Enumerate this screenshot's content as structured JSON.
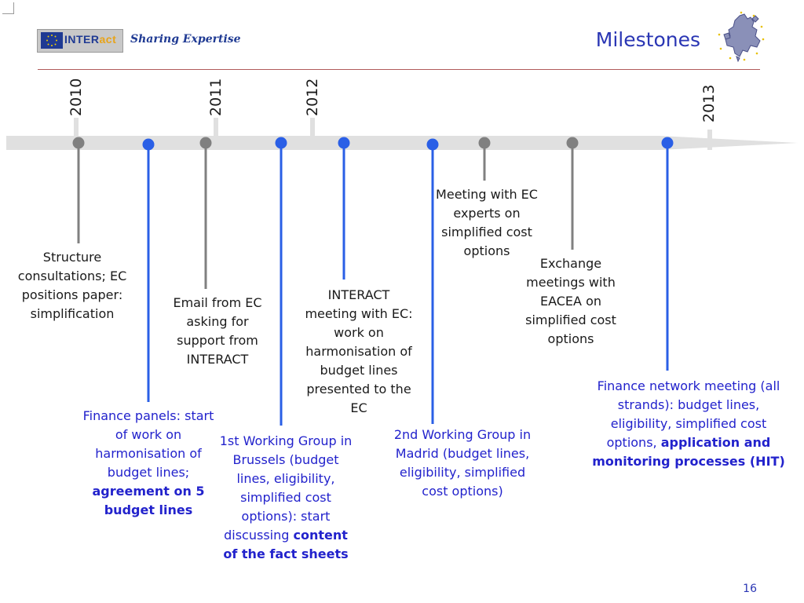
{
  "header": {
    "logo_text_a": "INTER",
    "logo_text_b": "act",
    "tagline": "Sharing Expertise",
    "title": "Milestones"
  },
  "colors": {
    "accent_blue": "#2222cc",
    "gray_marker": "#808080",
    "blue_marker": "#2a5fe6",
    "timeline_band": "#e0e0e0",
    "rule": "#b05a5a"
  },
  "timeline": {
    "years": [
      "2010",
      "2011",
      "2012",
      "2013"
    ],
    "events": [
      {
        "year": "2010",
        "text": "Structure consultations; EC positions paper: simplification"
      },
      {
        "year": "2010",
        "text": "Finance panels: start of work on harmonisation of budget lines; ",
        "bold": "agreement on 5 budget lines"
      },
      {
        "year": "2011",
        "text": "Email from EC asking for support from INTERACT"
      },
      {
        "year": "2011",
        "text": "1st Working Group in Brussels (budget lines, eligibility, simplified cost options): start discussing ",
        "bold": "content of the fact sheets"
      },
      {
        "year": "2011",
        "text": "INTERACT meeting with EC: work on harmonisation of budget lines presented to the EC"
      },
      {
        "year": "2012",
        "text": "2nd Working Group in Madrid (budget lines, eligibility, simplified cost options)"
      },
      {
        "year": "2012",
        "text": "Meeting with EC experts on simplified cost options"
      },
      {
        "year": "2012",
        "text": "Exchange meetings with EACEA on simplified cost options"
      },
      {
        "year": "2012",
        "text": "Finance network meeting (all strands): budget lines, eligibility, simplified cost options, ",
        "bold": "application and monitoring processes (HIT)"
      }
    ]
  },
  "footer": {
    "page_number": "16"
  }
}
